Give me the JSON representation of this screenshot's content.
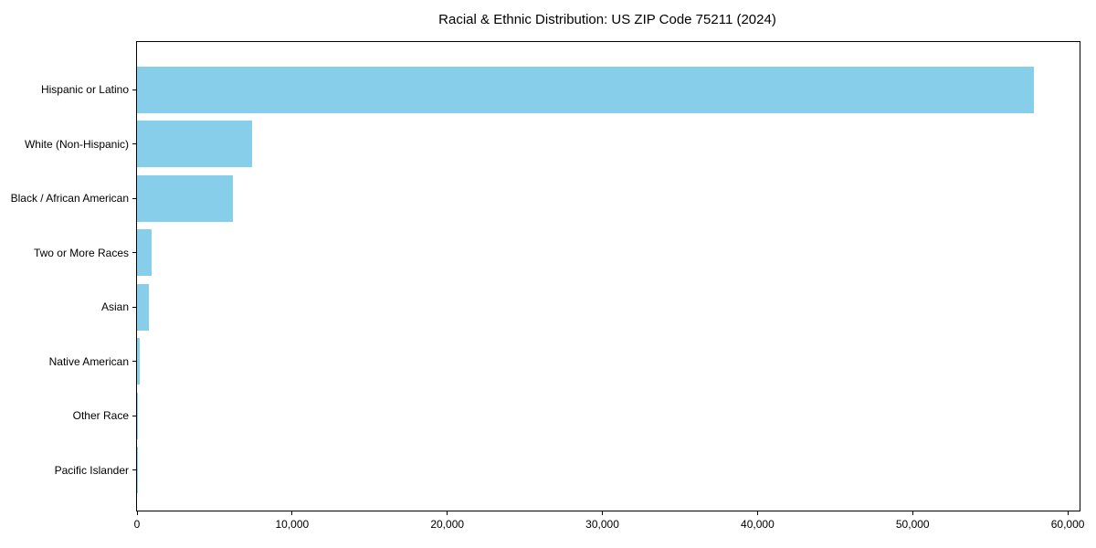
{
  "chart_data": {
    "type": "bar",
    "orientation": "horizontal",
    "title": "Racial & Ethnic Distribution: US ZIP Code 75211 (2024)",
    "categories": [
      "Hispanic or Latino",
      "White (Non-Hispanic)",
      "Black / African American",
      "Two or More Races",
      "Asian",
      "Native American",
      "Other Race",
      "Pacific Islander"
    ],
    "values": [
      57800,
      7400,
      6200,
      950,
      760,
      180,
      80,
      25
    ],
    "xlabel": "",
    "ylabel": "",
    "xlim": [
      0,
      60760
    ],
    "xticks": [
      0,
      10000,
      20000,
      30000,
      40000,
      50000,
      60000
    ],
    "xtick_labels": [
      "0",
      "10,000",
      "20,000",
      "30,000",
      "40,000",
      "50,000",
      "60,000"
    ],
    "bar_color": "#87CEEB",
    "grid": false,
    "legend": null,
    "background_color": "#ffffff",
    "spine_color": "#000000",
    "text_color": "#000000"
  }
}
